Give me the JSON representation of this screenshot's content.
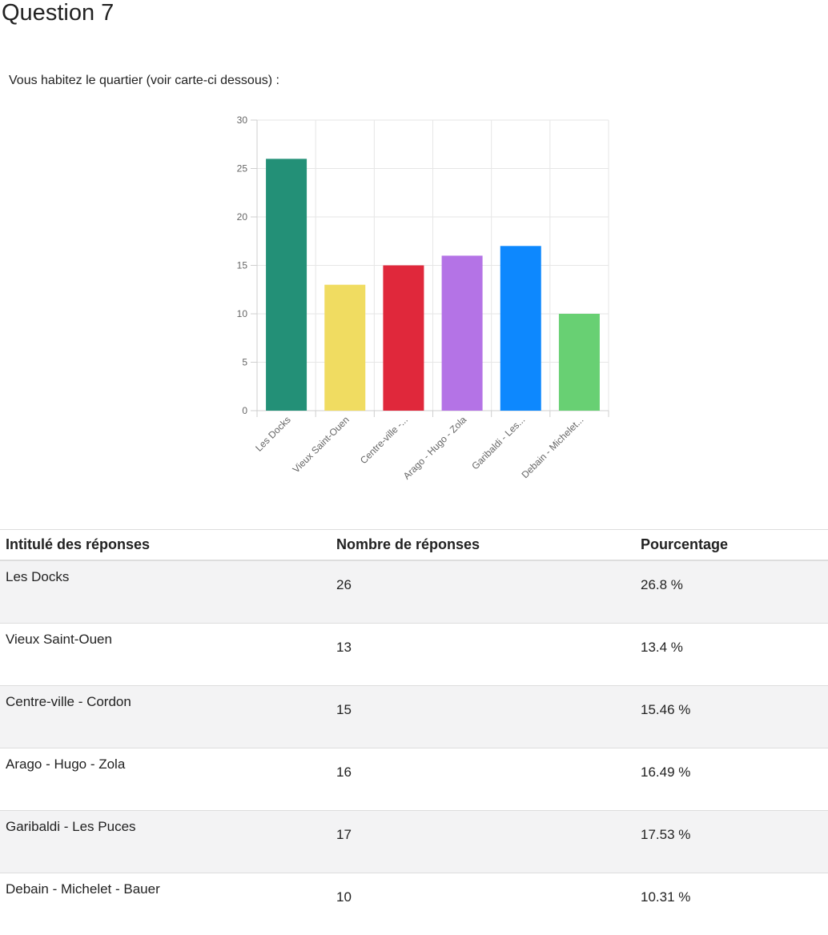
{
  "question": {
    "title": "Question 7",
    "text": "Vous habitez le quartier (voir carte-ci dessous) :"
  },
  "chart_data": {
    "type": "bar",
    "categories": [
      "Les Docks",
      "Vieux Saint-Ouen",
      "Centre-ville -...",
      "Arago - Hugo - Zola",
      "Garibaldi - Les...",
      "Debain - Michelet..."
    ],
    "values": [
      26,
      13,
      15,
      16,
      17,
      10
    ],
    "colors": [
      "#239077",
      "#f0dc61",
      "#e0283b",
      "#b473e6",
      "#0d88fe",
      "#68d073"
    ],
    "ylim": [
      0,
      30
    ],
    "yticks": [
      0,
      5,
      10,
      15,
      20,
      25,
      30
    ],
    "grid": true,
    "legend": "none"
  },
  "table": {
    "headers": [
      "Intitulé des réponses",
      "Nombre de réponses",
      "Pourcentage"
    ],
    "rows": [
      {
        "label": "Les Docks",
        "count": "26",
        "percent": "26.8 %"
      },
      {
        "label": "Vieux Saint-Ouen",
        "count": "13",
        "percent": "13.4 %"
      },
      {
        "label": "Centre-ville - Cordon",
        "count": "15",
        "percent": "15.46 %"
      },
      {
        "label": "Arago - Hugo - Zola",
        "count": "16",
        "percent": "16.49 %"
      },
      {
        "label": "Garibaldi - Les Puces",
        "count": "17",
        "percent": "17.53 %"
      },
      {
        "label": "Debain - Michelet - Bauer",
        "count": "10",
        "percent": "10.31 %"
      }
    ]
  }
}
